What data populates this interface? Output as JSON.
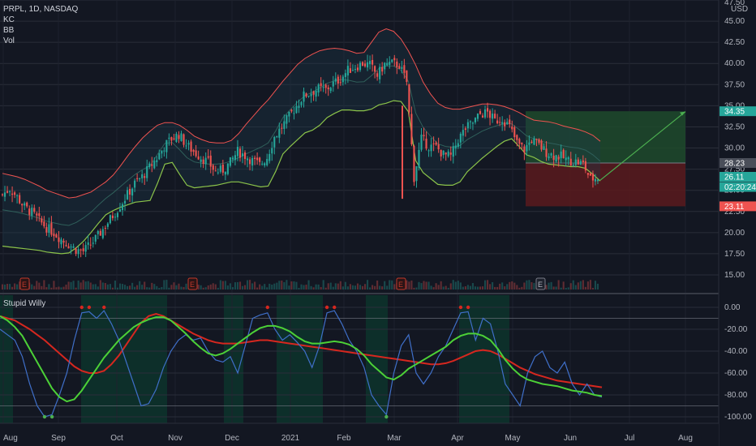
{
  "header": {
    "symbol_line": "PRPL, 1D, NASDAQ",
    "indicators": [
      "KC",
      "BB",
      "Vol"
    ],
    "currency": "USD"
  },
  "oscillator": {
    "name": "Stupid Willy"
  },
  "colors": {
    "background": "#131722",
    "up_candle": "#26a69a",
    "down_candle": "#ef5350",
    "kc_band": "#ef5350",
    "bb_band": "#8bc34a",
    "willy_line": "#3f6fc9",
    "signal_green": "#4cd137",
    "signal_red": "#d6271f",
    "zone_green": "#0c3a2e",
    "target_zone": "#1f4a2c",
    "stop_zone": "#5a1a1d",
    "earnings_marker": "#c0392b"
  },
  "chart_data": [
    {
      "type": "candlestick",
      "title": "PRPL, 1D, NASDAQ",
      "ylim": [
        14,
        47.5
      ],
      "yticks": [
        "15.00",
        "17.50",
        "20.00",
        "22.50",
        "25.00",
        "27.50",
        "30.00",
        "32.50",
        "35.00",
        "37.50",
        "40.00",
        "42.50",
        "45.00",
        "47.50"
      ],
      "xticks": [
        "Aug",
        "Sep",
        "Oct",
        "Nov",
        "Dec",
        "2021",
        "Feb",
        "Mar",
        "Apr",
        "May",
        "Jun",
        "Jul",
        "Aug"
      ],
      "price_labels": [
        {
          "value": "34.35",
          "kind": "target",
          "color": "#26a69a"
        },
        {
          "value": "28.23",
          "kind": "entry",
          "color": "#4a4e59"
        },
        {
          "value": "26.11",
          "kind": "last",
          "color": "#26a69a"
        },
        {
          "value": "02:20:24",
          "kind": "countdown",
          "color": "#26a69a"
        },
        {
          "value": "23.11",
          "kind": "stop",
          "color": "#ef5350"
        }
      ],
      "position": {
        "entry": 28.23,
        "target": 34.35,
        "stop": 23.11,
        "projection_end": 34.3
      },
      "earnings_marker_label": "E",
      "close_series": [
        24.5,
        25.2,
        24.2,
        23.0,
        22.4,
        21.4,
        20.6,
        20.0,
        19.2,
        18.6,
        18.0,
        17.8,
        18.6,
        19.6,
        20.8,
        22.0,
        23.2,
        24.5,
        25.8,
        26.6,
        27.7,
        28.8,
        30.2,
        31.1,
        31.6,
        30.4,
        29.6,
        28.9,
        28.3,
        27.2,
        27.4,
        28.3,
        29.6,
        29.1,
        28.5,
        28.0,
        28.9,
        31.3,
        32.5,
        33.7,
        35.0,
        36.2,
        36.6,
        37.0,
        36.9,
        37.6,
        38.2,
        39.2,
        39.6,
        40.0,
        39.8,
        38.6,
        39.9,
        40.0,
        39.8,
        37.8,
        26.5,
        31.1,
        30.2,
        30.1,
        29.2,
        29.0,
        31.0,
        32.3,
        33.0,
        34.0,
        34.2,
        33.2,
        33.5,
        32.5,
        30.6,
        29.8,
        31.0,
        30.3,
        29.5,
        29.1,
        29.0,
        28.5,
        28.4,
        28.1,
        26.3,
        26.5
      ],
      "kc_upper": [
        27.0,
        26.8,
        26.6,
        26.3,
        25.9,
        25.5,
        25.0,
        24.7,
        24.4,
        24.1,
        24.2,
        24.5,
        24.8,
        25.4,
        26.0,
        26.8,
        27.9,
        29.1,
        30.2,
        31.2,
        32.0,
        32.7,
        33.0,
        33.0,
        32.7,
        32.1,
        31.4,
        31.0,
        30.7,
        30.6,
        30.6,
        30.9,
        31.7,
        32.8,
        33.8,
        34.8,
        35.7,
        36.8,
        37.9,
        38.9,
        39.9,
        40.6,
        41.1,
        41.5,
        41.7,
        41.8,
        41.7,
        41.5,
        41.2,
        41.3,
        42.5,
        43.7,
        44.1,
        43.8,
        42.9,
        41.5,
        39.8,
        37.8,
        36.4,
        35.3,
        34.8,
        34.6,
        34.6,
        34.8,
        35.0,
        35.2,
        35.2,
        35.1,
        34.9,
        34.6,
        34.2,
        33.7,
        33.3,
        33.2,
        33.1,
        32.9,
        32.6,
        32.4,
        32.2,
        31.9,
        31.5,
        30.8
      ],
      "bb_lower": [
        18.4,
        18.3,
        18.2,
        18.1,
        18.0,
        17.9,
        17.7,
        17.6,
        17.5,
        17.6,
        18.2,
        19.0,
        20.0,
        21.1,
        22.1,
        22.6,
        23.0,
        23.3,
        23.6,
        23.7,
        23.8,
        25.8,
        28.1,
        28.3,
        26.9,
        25.6,
        25.3,
        25.4,
        25.5,
        25.6,
        25.8,
        26.0,
        26.0,
        25.8,
        25.6,
        25.4,
        25.5,
        27.2,
        29.3,
        30.2,
        31.0,
        31.8,
        32.1,
        32.7,
        33.6,
        34.1,
        34.5,
        34.5,
        34.4,
        34.4,
        34.6,
        35.1,
        35.3,
        35.6,
        35.5,
        34.3,
        28.5,
        27.1,
        26.4,
        25.7,
        25.6,
        25.6,
        26.0,
        27.2,
        28.0,
        28.8,
        29.5,
        30.2,
        30.8,
        31.1,
        30.2,
        29.2,
        28.9,
        28.4,
        28.1,
        28.0,
        27.9,
        27.8,
        27.8,
        27.6,
        26.9,
        26.1
      ]
    },
    {
      "type": "line",
      "title": "Stupid Willy",
      "ylim": [
        -104,
        6
      ],
      "yticks": [
        "0.00",
        "-20.00",
        "-40.00",
        "-60.00",
        "-80.00",
        "-100.00"
      ],
      "hlines": [
        -10,
        -90
      ],
      "series": [
        {
          "values": [
            -20,
            -25,
            -30,
            -45,
            -70,
            -90,
            -100,
            -98,
            -80,
            -60,
            -30,
            -5,
            -4,
            -10,
            -3,
            -15,
            -30,
            -50,
            -70,
            -90,
            -88,
            -75,
            -55,
            -40,
            -30,
            -25,
            -30,
            -28,
            -40,
            -48,
            -50,
            -45,
            -60,
            -35,
            -10,
            -7,
            -5,
            -20,
            -30,
            -25,
            -32,
            -40,
            -55,
            -35,
            -5,
            -3,
            -15,
            -30,
            -40,
            -55,
            -80,
            -90,
            -98,
            -60,
            -35,
            -25,
            -60,
            -70,
            -60,
            -45,
            -35,
            -20,
            -5,
            -4,
            -30,
            -10,
            -15,
            -40,
            -70,
            -80,
            -90,
            -60,
            -45,
            -40,
            -55,
            -60,
            -50,
            -70,
            -80,
            -70,
            -80,
            -82
          ]
        },
        {
          "name": "",
          "values": [
            -8,
            -12,
            -18,
            -26,
            -38,
            -50,
            -62,
            -74,
            -82,
            -86,
            -84,
            -76,
            -66,
            -56,
            -46,
            -38,
            -30,
            -24,
            -18,
            -14,
            -11,
            -9,
            -9,
            -12,
            -18,
            -24,
            -31,
            -37,
            -42,
            -44,
            -42,
            -38,
            -33,
            -28,
            -23,
            -19,
            -17,
            -17,
            -19,
            -22,
            -27,
            -31,
            -33,
            -33,
            -32,
            -31,
            -32,
            -34,
            -38,
            -44,
            -52,
            -58,
            -64,
            -66,
            -62,
            -56,
            -52,
            -48,
            -44,
            -40,
            -36,
            -30,
            -26,
            -24,
            -24,
            -26,
            -30,
            -38,
            -48,
            -56,
            -62,
            -66,
            -68,
            -70,
            -71,
            -72,
            -74,
            -76,
            -77,
            -78,
            -80,
            -81
          ]
        }
      ],
      "trend_values": [
        -8,
        -10,
        -12,
        -16,
        -20,
        -25,
        -30,
        -36,
        -42,
        -48,
        -54,
        -58,
        -60,
        -60,
        -58,
        -52,
        -44,
        -34,
        -24,
        -14,
        -8,
        -6,
        -8,
        -12,
        -16,
        -20,
        -24,
        -27,
        -30,
        -32,
        -33,
        -33,
        -33,
        -32,
        -31,
        -30,
        -30,
        -31,
        -32,
        -33,
        -34,
        -35,
        -36,
        -37,
        -38,
        -39,
        -40,
        -41,
        -42,
        -43,
        -44,
        -45,
        -46,
        -47,
        -48,
        -49,
        -50,
        -51,
        -52,
        -52,
        -51,
        -49,
        -46,
        -43,
        -40,
        -39,
        -40,
        -43,
        -47,
        -51,
        -55,
        -58,
        -61,
        -63,
        -65,
        -67,
        -68,
        -69,
        -70,
        -71,
        -72,
        -73
      ]
    }
  ]
}
